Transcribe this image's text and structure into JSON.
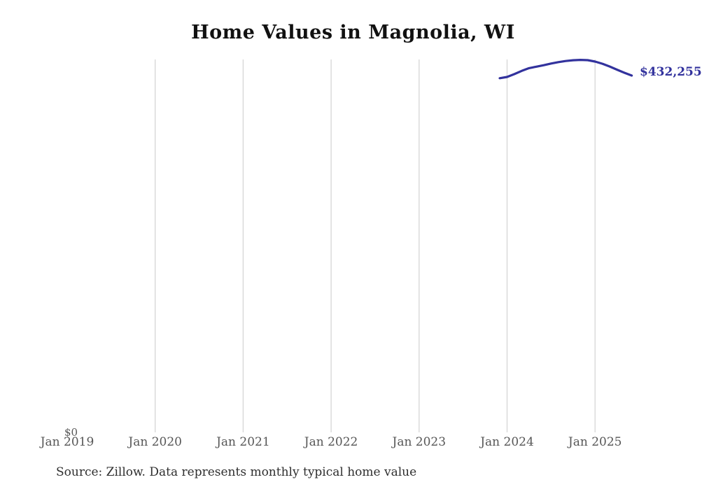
{
  "page": {
    "title": "Home Values in Magnolia, WI",
    "source_note": "Source: Zillow. Data represents monthly typical home value"
  },
  "chart_data": {
    "type": "line",
    "title": "Home Values in Magnolia, WI",
    "xlabel": "",
    "ylabel": "",
    "ylim": [
      0,
      460000
    ],
    "x_range": [
      "Jan 2019",
      "Jun 2025"
    ],
    "grid": "vertical-only",
    "legend": false,
    "y_axis": {
      "zero_label": "$0"
    },
    "x_ticks": [
      {
        "label": "Jan 2019",
        "year": 2019,
        "gridline": false
      },
      {
        "label": "Jan 2020",
        "year": 2020,
        "gridline": true
      },
      {
        "label": "Jan 2021",
        "year": 2021,
        "gridline": true
      },
      {
        "label": "Jan 2022",
        "year": 2022,
        "gridline": true
      },
      {
        "label": "Jan 2023",
        "year": 2023,
        "gridline": true
      },
      {
        "label": "Jan 2024",
        "year": 2024,
        "gridline": true
      },
      {
        "label": "Jan 2025",
        "year": 2025,
        "gridline": true
      }
    ],
    "series": [
      {
        "name": "Monthly typical home value",
        "points": [
          {
            "date": "2023-12",
            "value": 429000
          },
          {
            "date": "2024-01",
            "value": 430600
          },
          {
            "date": "2024-02",
            "value": 434100
          },
          {
            "date": "2024-03",
            "value": 438000
          },
          {
            "date": "2024-04",
            "value": 441300
          },
          {
            "date": "2024-05",
            "value": 443100
          },
          {
            "date": "2024-06",
            "value": 444900
          },
          {
            "date": "2024-07",
            "value": 446900
          },
          {
            "date": "2024-08",
            "value": 448600
          },
          {
            "date": "2024-09",
            "value": 450000
          },
          {
            "date": "2024-10",
            "value": 450900
          },
          {
            "date": "2024-11",
            "value": 451400
          },
          {
            "date": "2024-12",
            "value": 451000
          },
          {
            "date": "2025-01",
            "value": 449300
          },
          {
            "date": "2025-02",
            "value": 446700
          },
          {
            "date": "2025-03",
            "value": 443300
          },
          {
            "date": "2025-04",
            "value": 439400
          },
          {
            "date": "2025-05",
            "value": 435700
          },
          {
            "date": "2025-06",
            "value": 432255
          }
        ]
      }
    ],
    "end_label": "$432,255",
    "colors": {
      "line": "#32329d",
      "end_label": "#32329d",
      "gridline": "#d6d6d6",
      "axis_text": "#575757",
      "title_text": "#111111",
      "source_text": "#2e2e2e"
    }
  }
}
